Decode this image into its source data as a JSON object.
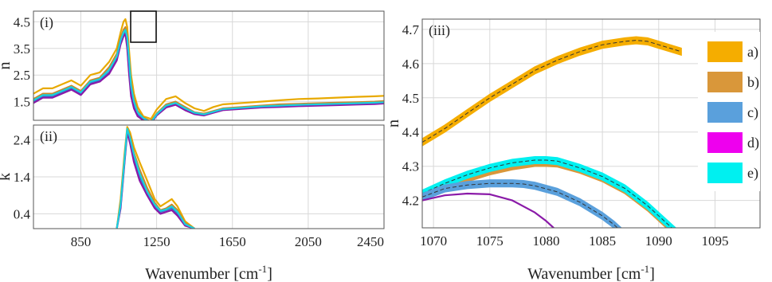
{
  "chart_data": [
    {
      "id": "panel-i",
      "type": "line",
      "panel_label": "(i)",
      "ylabel": "n",
      "xlabel": "",
      "xlim": [
        600,
        2450
      ],
      "ylim": [
        0.8,
        4.9
      ],
      "xticks": [
        850,
        1250,
        1650,
        2050,
        2450
      ],
      "yticks": [
        1.5,
        2.5,
        3.5,
        4.5
      ],
      "ytick_labels": [
        "1.5",
        "2.5",
        "3.5",
        "4.5"
      ],
      "grid": true,
      "series": [
        {
          "key": "a",
          "color": "#e8a900",
          "x": [
            600,
            650,
            700,
            750,
            800,
            850,
            900,
            950,
            1000,
            1040,
            1060,
            1075,
            1085,
            1095,
            1105,
            1115,
            1130,
            1150,
            1180,
            1220,
            1250,
            1300,
            1350,
            1400,
            1450,
            1500,
            1550,
            1600,
            1700,
            1800,
            1900,
            2000,
            2100,
            2200,
            2300,
            2400,
            2450
          ],
          "y": [
            1.8,
            2.0,
            2.0,
            2.15,
            2.3,
            2.1,
            2.5,
            2.6,
            3.0,
            3.5,
            4.1,
            4.5,
            4.6,
            4.3,
            3.4,
            2.5,
            1.8,
            1.3,
            0.95,
            0.85,
            1.2,
            1.6,
            1.7,
            1.45,
            1.25,
            1.15,
            1.3,
            1.4,
            1.45,
            1.5,
            1.55,
            1.6,
            1.62,
            1.65,
            1.68,
            1.7,
            1.72
          ]
        },
        {
          "key": "b",
          "color": "#c8882a",
          "x": [
            600,
            650,
            700,
            750,
            800,
            850,
            900,
            950,
            1000,
            1040,
            1060,
            1075,
            1085,
            1095,
            1105,
            1115,
            1130,
            1150,
            1180,
            1220,
            1250,
            1300,
            1350,
            1400,
            1450,
            1500,
            1550,
            1600,
            1700,
            1800,
            1900,
            2000,
            2100,
            2200,
            2300,
            2400,
            2450
          ],
          "y": [
            1.6,
            1.8,
            1.8,
            1.95,
            2.1,
            1.9,
            2.3,
            2.4,
            2.8,
            3.3,
            3.9,
            4.2,
            4.3,
            4.0,
            3.1,
            2.2,
            1.6,
            1.15,
            0.9,
            0.75,
            1.05,
            1.4,
            1.5,
            1.3,
            1.1,
            1.05,
            1.15,
            1.25,
            1.3,
            1.35,
            1.4,
            1.42,
            1.44,
            1.46,
            1.48,
            1.5,
            1.52
          ]
        },
        {
          "key": "c",
          "color": "#3a78c8",
          "x": [
            600,
            650,
            700,
            750,
            800,
            850,
            900,
            950,
            1000,
            1040,
            1060,
            1075,
            1085,
            1095,
            1105,
            1115,
            1130,
            1150,
            1180,
            1220,
            1250,
            1300,
            1350,
            1400,
            1450,
            1500,
            1550,
            1600,
            1700,
            1800,
            1900,
            2000,
            2100,
            2200,
            2300,
            2400,
            2450
          ],
          "y": [
            1.5,
            1.7,
            1.7,
            1.85,
            2.0,
            1.8,
            2.2,
            2.3,
            2.6,
            3.1,
            3.7,
            4.0,
            4.1,
            3.6,
            2.6,
            1.8,
            1.3,
            1.0,
            0.85,
            0.7,
            1.0,
            1.3,
            1.4,
            1.2,
            1.05,
            1.0,
            1.1,
            1.2,
            1.25,
            1.3,
            1.32,
            1.35,
            1.37,
            1.39,
            1.41,
            1.43,
            1.45
          ]
        },
        {
          "key": "d",
          "color": "#8a1aa8",
          "x": [
            600,
            650,
            700,
            750,
            800,
            850,
            900,
            950,
            1000,
            1040,
            1060,
            1075,
            1085,
            1095,
            1105,
            1115,
            1130,
            1150,
            1180,
            1220,
            1250,
            1300,
            1350,
            1400,
            1450,
            1500,
            1550,
            1600,
            1700,
            1800,
            1900,
            2000,
            2100,
            2200,
            2300,
            2400,
            2450
          ],
          "y": [
            1.45,
            1.65,
            1.65,
            1.8,
            1.95,
            1.75,
            2.15,
            2.25,
            2.55,
            3.05,
            3.65,
            3.95,
            4.05,
            3.5,
            2.5,
            1.7,
            1.25,
            0.95,
            0.8,
            0.68,
            0.98,
            1.28,
            1.38,
            1.18,
            1.03,
            0.98,
            1.08,
            1.18,
            1.23,
            1.28,
            1.3,
            1.33,
            1.35,
            1.37,
            1.39,
            1.41,
            1.43
          ]
        },
        {
          "key": "e",
          "color": "#18d0e0",
          "x": [
            600,
            650,
            700,
            750,
            800,
            850,
            900,
            950,
            1000,
            1040,
            1060,
            1075,
            1085,
            1095,
            1105,
            1115,
            1130,
            1150,
            1180,
            1220,
            1250,
            1300,
            1350,
            1400,
            1450,
            1500,
            1550,
            1600,
            1700,
            1800,
            1900,
            2000,
            2100,
            2200,
            2300,
            2400,
            2450
          ],
          "y": [
            1.55,
            1.75,
            1.75,
            1.9,
            2.05,
            1.85,
            2.25,
            2.35,
            2.7,
            3.2,
            3.8,
            4.1,
            4.2,
            3.9,
            3.0,
            2.1,
            1.5,
            1.1,
            0.88,
            0.72,
            1.02,
            1.35,
            1.45,
            1.25,
            1.08,
            1.02,
            1.12,
            1.22,
            1.27,
            1.32,
            1.35,
            1.38,
            1.4,
            1.42,
            1.44,
            1.46,
            1.48
          ]
        }
      ]
    },
    {
      "id": "panel-ii",
      "type": "line",
      "panel_label": "(ii)",
      "ylabel": "k",
      "xlabel": "Wavenumber [cm",
      "xlabel_sup": "-1",
      "xlabel_end": "]",
      "xlim": [
        600,
        2450
      ],
      "ylim": [
        0,
        2.8
      ],
      "xticks": [
        850,
        1250,
        1650,
        2050,
        2450
      ],
      "yticks": [
        0.4,
        1.4,
        2.4
      ],
      "ytick_labels": [
        "0.4",
        "1.4",
        "2.4"
      ],
      "grid": true,
      "series": [
        {
          "key": "a",
          "color": "#e8a900",
          "x": [
            1040,
            1060,
            1080,
            1095,
            1110,
            1130,
            1160,
            1200,
            1240,
            1270,
            1300,
            1330,
            1360,
            1400,
            1450
          ],
          "y": [
            0,
            0.8,
            2.0,
            2.75,
            2.6,
            2.2,
            1.8,
            1.3,
            0.8,
            0.6,
            0.7,
            0.8,
            0.6,
            0.2,
            0
          ]
        },
        {
          "key": "b",
          "color": "#c8882a",
          "x": [
            1040,
            1060,
            1080,
            1095,
            1110,
            1130,
            1160,
            1200,
            1240,
            1270,
            1300,
            1330,
            1360,
            1400,
            1450
          ],
          "y": [
            0,
            0.7,
            1.9,
            2.7,
            2.5,
            2.05,
            1.6,
            1.1,
            0.7,
            0.5,
            0.55,
            0.65,
            0.5,
            0.15,
            0
          ]
        },
        {
          "key": "c",
          "color": "#3a78c8",
          "x": [
            1040,
            1060,
            1080,
            1095,
            1110,
            1130,
            1160,
            1200,
            1240,
            1270,
            1300,
            1330,
            1360,
            1400,
            1450
          ],
          "y": [
            0,
            0.6,
            1.8,
            2.65,
            2.4,
            1.9,
            1.4,
            0.95,
            0.6,
            0.45,
            0.5,
            0.55,
            0.4,
            0.1,
            0
          ]
        },
        {
          "key": "d",
          "color": "#8a1aa8",
          "x": [
            1040,
            1060,
            1080,
            1095,
            1110,
            1130,
            1160,
            1200,
            1240,
            1270,
            1300,
            1330,
            1360,
            1400,
            1450
          ],
          "y": [
            0,
            0.55,
            1.75,
            2.6,
            2.3,
            1.8,
            1.3,
            0.9,
            0.55,
            0.4,
            0.45,
            0.5,
            0.35,
            0.08,
            0
          ]
        },
        {
          "key": "e",
          "color": "#18d0e0",
          "x": [
            1040,
            1060,
            1080,
            1095,
            1110,
            1130,
            1160,
            1200,
            1240,
            1270,
            1300,
            1330,
            1360,
            1400,
            1450
          ],
          "y": [
            0,
            0.65,
            1.85,
            2.7,
            2.45,
            2.0,
            1.5,
            1.0,
            0.65,
            0.48,
            0.52,
            0.6,
            0.45,
            0.12,
            0
          ]
        }
      ]
    },
    {
      "id": "panel-iii",
      "type": "line",
      "panel_label": "(iii)",
      "ylabel": "n",
      "xlabel": "Wavenumber [cm",
      "xlabel_sup": "-1",
      "xlabel_end": "]",
      "xlim": [
        1069,
        1099
      ],
      "ylim": [
        4.12,
        4.73
      ],
      "xticks": [
        1070,
        1075,
        1080,
        1085,
        1090,
        1095
      ],
      "yticks": [
        4.2,
        4.3,
        4.4,
        4.5,
        4.6,
        4.7
      ],
      "ytick_labels": [
        "4.2",
        "4.3",
        "4.4",
        "4.5",
        "4.6",
        "4.7"
      ],
      "grid": true,
      "band_width": 0.01,
      "legend": {
        "placement": "right",
        "entries": [
          {
            "label": "a)",
            "color": "#f5ad00"
          },
          {
            "label": "b)",
            "color": "#d9973a"
          },
          {
            "label": "c)",
            "color": "#5aa0dc"
          },
          {
            "label": "d)",
            "color": "#ee00ee"
          },
          {
            "label": "e)",
            "color": "#00f0f0"
          }
        ]
      },
      "series": [
        {
          "key": "a",
          "color": "#f5ad00",
          "band": true,
          "x": [
            1069,
            1071,
            1073,
            1075,
            1077,
            1079,
            1081,
            1083,
            1085,
            1087,
            1088,
            1089,
            1090,
            1091,
            1092
          ],
          "y": [
            4.37,
            4.41,
            4.455,
            4.5,
            4.54,
            4.58,
            4.61,
            4.635,
            4.655,
            4.665,
            4.668,
            4.665,
            4.655,
            4.645,
            4.635
          ]
        },
        {
          "key": "b",
          "color": "#d9973a",
          "band": true,
          "x": [
            1069,
            1071,
            1073,
            1075,
            1077,
            1079,
            1080,
            1081,
            1083,
            1085,
            1087,
            1089,
            1091,
            1092
          ],
          "y": [
            4.21,
            4.24,
            4.265,
            4.285,
            4.3,
            4.31,
            4.31,
            4.308,
            4.29,
            4.265,
            4.23,
            4.18,
            4.12,
            4.09
          ]
        },
        {
          "key": "e",
          "color": "#00f0f0",
          "band": true,
          "x": [
            1069,
            1071,
            1073,
            1075,
            1077,
            1079,
            1080,
            1081,
            1083,
            1085,
            1087,
            1089,
            1091,
            1092
          ],
          "y": [
            4.22,
            4.25,
            4.275,
            4.295,
            4.31,
            4.318,
            4.318,
            4.315,
            4.295,
            4.27,
            4.235,
            4.185,
            4.125,
            4.095
          ]
        },
        {
          "key": "c",
          "color": "#5aa0dc",
          "band": true,
          "x": [
            1069,
            1071,
            1073,
            1075,
            1077,
            1078,
            1079,
            1081,
            1083,
            1085,
            1086,
            1087
          ],
          "y": [
            4.21,
            4.235,
            4.245,
            4.25,
            4.25,
            4.248,
            4.243,
            4.225,
            4.195,
            4.155,
            4.13,
            4.1
          ]
        },
        {
          "key": "d",
          "color": "#8a1aa8",
          "band": false,
          "x": [
            1069,
            1071,
            1073,
            1075,
            1077,
            1079,
            1080,
            1081,
            1082
          ],
          "y": [
            4.2,
            4.215,
            4.22,
            4.218,
            4.2,
            4.165,
            4.14,
            4.11,
            4.085
          ]
        }
      ]
    }
  ]
}
